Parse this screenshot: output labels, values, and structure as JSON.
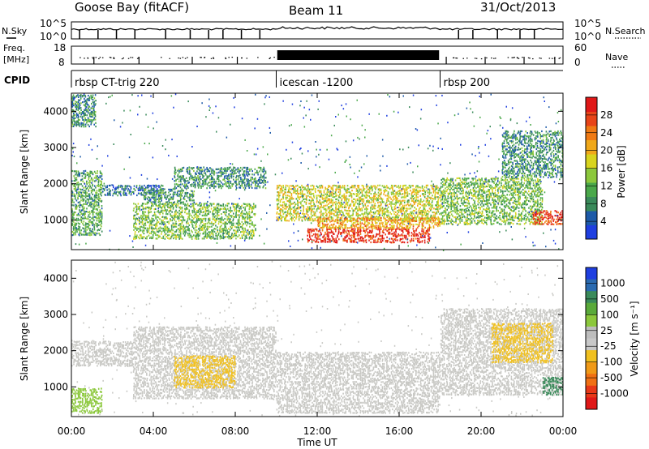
{
  "header": {
    "title": "Goose Bay (fitACF)",
    "beam": "Beam 11",
    "date": "31/Oct/2013"
  },
  "side_labels": {
    "nsky": "N.Sky",
    "nsearch": "N.Search",
    "freq": "Freq.",
    "freq_unit": "[MHz]",
    "nave": "Nave",
    "cpid": "CPID"
  },
  "noise_panel": {
    "left_ticks": [
      "10^5",
      "10^0"
    ],
    "right_ticks": [
      "10^5",
      "10^0"
    ]
  },
  "freq_panel": {
    "left_ticks": [
      "18",
      "8"
    ],
    "right_ticks": [
      "60",
      "0"
    ]
  },
  "cpid_segments": [
    {
      "label": "rbsp CT-trig 220",
      "start_h": 0.0
    },
    {
      "label": "icescan -1200",
      "start_h": 10.0
    },
    {
      "label": "rbsp 200",
      "start_h": 18.0
    }
  ],
  "colorbars": {
    "power": {
      "label": "Power [dB]",
      "ticks": [
        "4",
        "8",
        "12",
        "16",
        "20",
        "24",
        "28"
      ],
      "colors": [
        "#1f3fe0",
        "#1d5aa8",
        "#3a8a5a",
        "#4aa84a",
        "#8cc83c",
        "#d8d41e",
        "#f0a81a",
        "#f07a14",
        "#e84418",
        "#e01818"
      ]
    },
    "velocity": {
      "label": "Velocity [m s⁻¹]",
      "ticks": [
        "1000",
        "500",
        "100",
        "25",
        "-25",
        "-100",
        "-500",
        "-1000"
      ],
      "colors": [
        "#1f3fe0",
        "#2a6ab0",
        "#3a8a5a",
        "#5aaa3a",
        "#8cc83c",
        "#bdbdbd",
        "#c8c8c8",
        "#f0c020",
        "#f09a18",
        "#f07014",
        "#e83818",
        "#e01818"
      ]
    }
  },
  "chart_data": [
    {
      "type": "heatmap",
      "name": "power",
      "xlabel": "",
      "ylabel": "Slant Range [km]",
      "xlim_hours": [
        0,
        24
      ],
      "ylim_km": [
        180,
        4500
      ],
      "y_ticks": [
        "1000",
        "2000",
        "3000",
        "4000"
      ],
      "colorbar_range_db": [
        0,
        30
      ],
      "regions": [
        {
          "t0": 0.0,
          "t1": 1.5,
          "r0": 600,
          "r1": 2400,
          "value": 10
        },
        {
          "t0": 0.0,
          "t1": 1.2,
          "r0": 3600,
          "r1": 4500,
          "value": 8
        },
        {
          "t0": 1.5,
          "t1": 4.5,
          "r0": 1700,
          "r1": 2000,
          "value": 6
        },
        {
          "t0": 3.0,
          "t1": 9.0,
          "r0": 500,
          "r1": 1500,
          "value": 12
        },
        {
          "t0": 3.5,
          "t1": 6.0,
          "r0": 1500,
          "r1": 1900,
          "value": 9
        },
        {
          "t0": 5.0,
          "t1": 9.5,
          "r0": 1900,
          "r1": 2500,
          "value": 8
        },
        {
          "t0": 10.0,
          "t1": 18.0,
          "r0": 1000,
          "r1": 2000,
          "value": 16
        },
        {
          "t0": 11.5,
          "t1": 17.5,
          "r0": 400,
          "r1": 800,
          "value": 27
        },
        {
          "t0": 12.0,
          "t1": 18.0,
          "r0": 800,
          "r1": 1100,
          "value": 20
        },
        {
          "t0": 18.0,
          "t1": 23.0,
          "r0": 900,
          "r1": 2200,
          "value": 12
        },
        {
          "t0": 21.0,
          "t1": 24.0,
          "r0": 2200,
          "r1": 3500,
          "value": 8
        },
        {
          "t0": 22.5,
          "t1": 24.0,
          "r0": 900,
          "r1": 1300,
          "value": 26
        }
      ]
    },
    {
      "type": "heatmap",
      "name": "velocity",
      "xlabel": "Time UT",
      "ylabel": "Slant Range [km]",
      "xlim_hours": [
        0,
        24
      ],
      "ylim_km": [
        180,
        4500
      ],
      "x_ticks": [
        "00:00",
        "04:00",
        "08:00",
        "12:00",
        "16:00",
        "20:00",
        "00:00"
      ],
      "y_ticks": [
        "1000",
        "2000",
        "3000",
        "4000"
      ],
      "colorbar_range_ms": [
        -1000,
        1000
      ],
      "regions": [
        {
          "t0": 0.0,
          "t1": 3.0,
          "r0": 1600,
          "r1": 2300,
          "value": 0
        },
        {
          "t0": 0.0,
          "t1": 1.5,
          "r0": 300,
          "r1": 1000,
          "value": 200
        },
        {
          "t0": 3.0,
          "t1": 10.0,
          "r0": 700,
          "r1": 2700,
          "value": 0
        },
        {
          "t0": 5.0,
          "t1": 8.0,
          "r0": 1000,
          "r1": 1900,
          "value": -300
        },
        {
          "t0": 10.0,
          "t1": 18.0,
          "r0": 300,
          "r1": 2000,
          "value": 0
        },
        {
          "t0": 18.0,
          "t1": 24.0,
          "r0": 800,
          "r1": 3200,
          "value": 0
        },
        {
          "t0": 20.5,
          "t1": 23.5,
          "r0": 1700,
          "r1": 2800,
          "value": -300
        },
        {
          "t0": 23.0,
          "t1": 24.0,
          "r0": 800,
          "r1": 1300,
          "value": 600
        }
      ]
    }
  ]
}
